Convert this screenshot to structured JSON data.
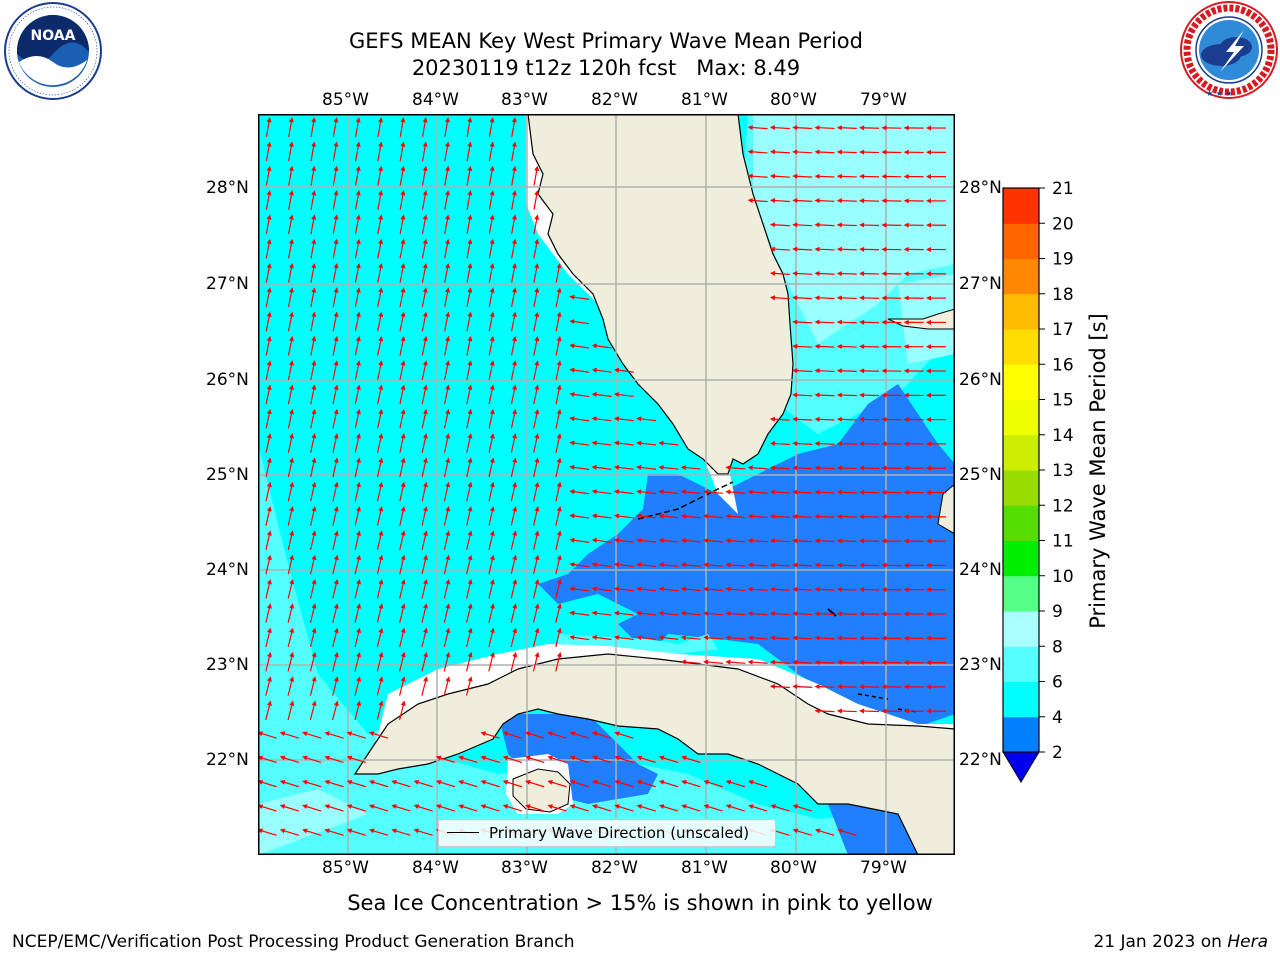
{
  "header": {
    "title_line1": "GEFS MEAN Key West Primary Wave Mean Period",
    "title_line2": "20230119 t12z 120h fcst   Max: 8.49"
  },
  "logos": {
    "left": "NOAA",
    "left_ring_text": "NATIONAL OCEANIC AND ATMOSPHERIC ADMINISTRATION · U.S. DEPARTMENT OF COMMERCE",
    "right_ring_text": "NATIONAL WEATHER SERVICE"
  },
  "map": {
    "lon_labels": [
      "85°W",
      "84°W",
      "83°W",
      "82°W",
      "81°W",
      "80°W",
      "79°W"
    ],
    "lat_labels": [
      "28°N",
      "27°N",
      "26°N",
      "25°N",
      "24°N",
      "23°N",
      "22°N"
    ],
    "legend_label": "Primary Wave Direction (unscaled)",
    "colors": {
      "land": "#efeedd",
      "ocean_4_6": "#00ffff",
      "ocean_6_8": "#55ffff",
      "ocean_8_9": "#99ffff",
      "ocean_2_4": "#1f7fff",
      "arrow": "#ff0000",
      "grid": "#b0b0b0"
    }
  },
  "colorbar": {
    "label": "Primary Wave Mean Period [s]",
    "ticks": [
      "2",
      "4",
      "6",
      "8",
      "9",
      "10",
      "11",
      "12",
      "13",
      "14",
      "15",
      "16",
      "17",
      "18",
      "19",
      "20",
      "21"
    ],
    "colors": [
      "#007fff",
      "#00ffff",
      "#55ffff",
      "#aaffff",
      "#55ff88",
      "#00ee00",
      "#55dd00",
      "#99dd00",
      "#ccee00",
      "#eeff00",
      "#ffff00",
      "#ffdd00",
      "#ffbb00",
      "#ff8800",
      "#ff6600",
      "#ff3300"
    ],
    "extend_min_color": "#0000ee"
  },
  "caption": "Sea Ice Concentration > 15% is shown in pink to yellow",
  "footer": {
    "left": "NCEP/EMC/Verification Post Processing Product Generation Branch",
    "date": "21 Jan 2023 on ",
    "machine": "Hera"
  }
}
